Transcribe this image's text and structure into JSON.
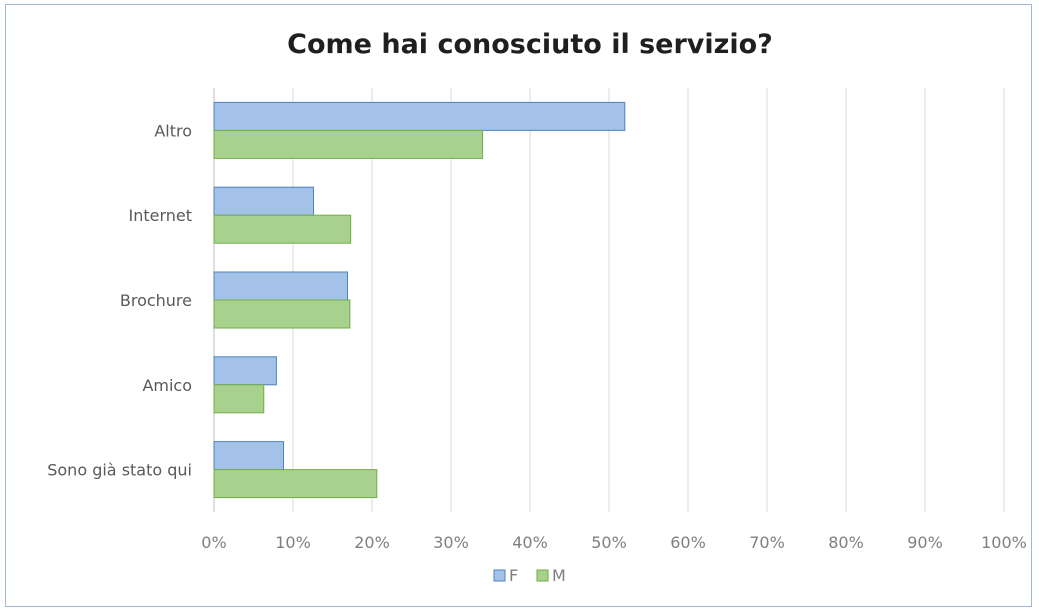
{
  "chart_data": {
    "type": "bar",
    "orientation": "horizontal",
    "title": "Come hai conosciuto il servizio?",
    "categories": [
      "Altro",
      "Internet",
      "Brochure",
      "Amico",
      "Sono già stato qui"
    ],
    "series": [
      {
        "name": "F",
        "values": [
          52,
          12.6,
          16.9,
          7.9,
          8.8
        ],
        "color": "#a4c2e8",
        "border": "#4f81bd"
      },
      {
        "name": "M",
        "values": [
          34,
          17.3,
          17.2,
          6.3,
          20.6
        ],
        "color": "#a9d18e",
        "border": "#70ad47"
      }
    ],
    "xlim": [
      0,
      100
    ],
    "xticks": [
      "0%",
      "10%",
      "20%",
      "30%",
      "40%",
      "50%",
      "60%",
      "70%",
      "80%",
      "90%",
      "100%"
    ],
    "grid": true,
    "legend": "bottom"
  }
}
